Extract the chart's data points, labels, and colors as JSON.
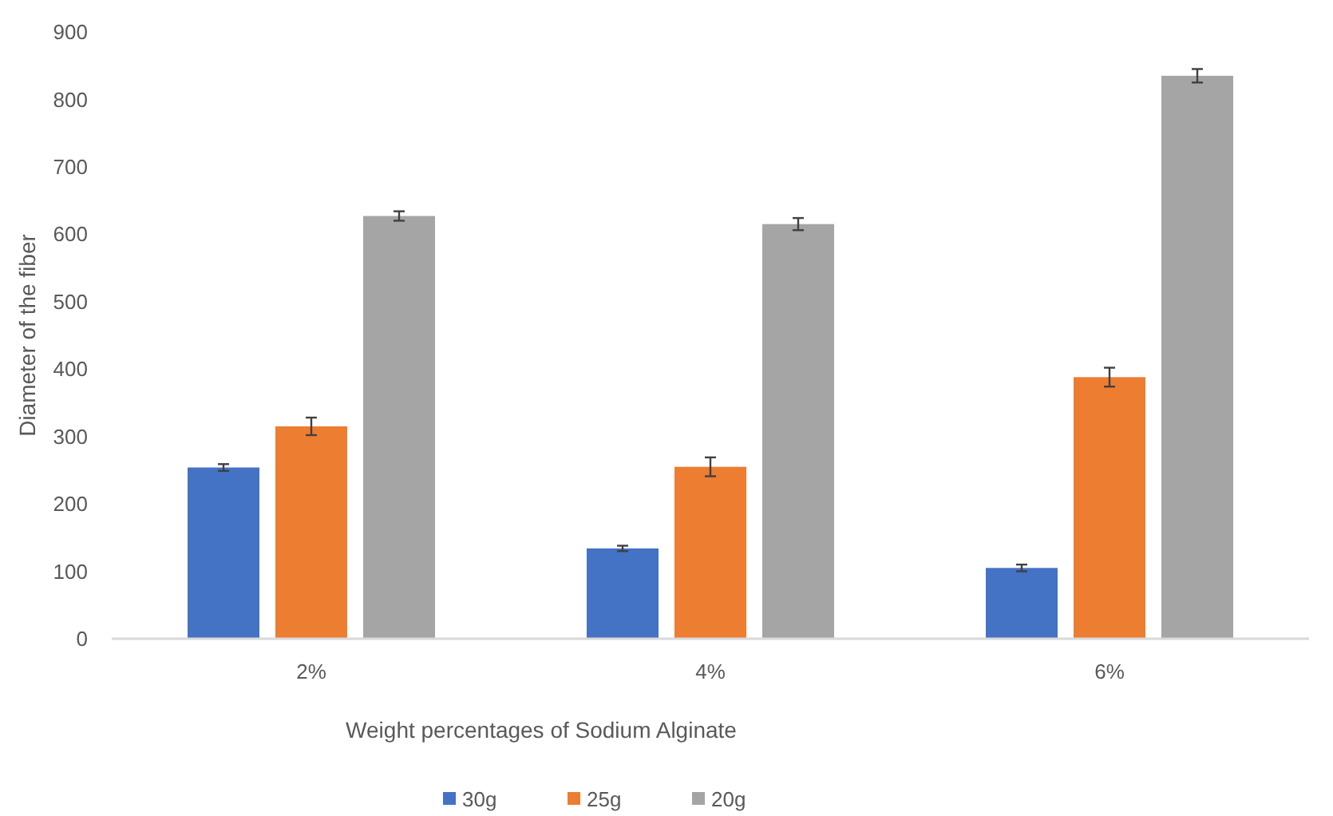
{
  "chart_data": {
    "type": "bar",
    "xlabel": "Weight percentages  of Sodium Alginate",
    "ylabel": "Diameter of the fiber",
    "categories": [
      "2%",
      "4%",
      "6%"
    ],
    "series": [
      {
        "name": "30g",
        "color": "#4472c4",
        "values": [
          254,
          134,
          105
        ],
        "errors": [
          5,
          4,
          5
        ]
      },
      {
        "name": "25g",
        "color": "#ed7d31",
        "values": [
          315,
          255,
          388
        ],
        "errors": [
          13,
          14,
          14
        ]
      },
      {
        "name": "20g",
        "color": "#a5a5a5",
        "values": [
          627,
          615,
          835
        ],
        "errors": [
          7,
          9,
          10
        ]
      }
    ],
    "ylim": [
      0,
      900
    ],
    "yticks": [
      0,
      100,
      200,
      300,
      400,
      500,
      600,
      700,
      800,
      900
    ],
    "grid": false,
    "legend": "bottom"
  }
}
